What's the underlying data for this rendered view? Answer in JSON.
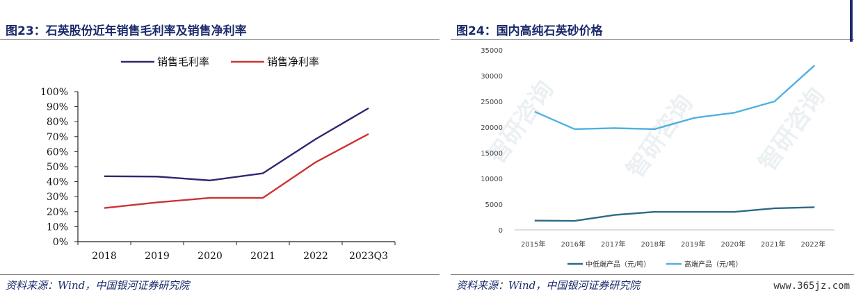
{
  "left": {
    "title": "图23：石英股份近年销售毛利率及销售净利率",
    "source": "资料来源：Wind，中国银河证券研究院"
  },
  "right": {
    "title": "图24：国内高纯石英砂价格",
    "source": "资料来源：Wind，中国银河证券研究院",
    "site": "www.365jz.com"
  },
  "chart_data": [
    {
      "type": "line",
      "title": "",
      "categories": [
        "2018",
        "2019",
        "2020",
        "2021",
        "2022",
        "2023Q3"
      ],
      "y_ticks": [
        "0%",
        "10%",
        "20%",
        "30%",
        "40%",
        "50%",
        "60%",
        "70%",
        "80%",
        "90%",
        "100%"
      ],
      "ylim": [
        0,
        100
      ],
      "legend_placement": "top",
      "grid": false,
      "series": [
        {
          "name": "销售毛利率",
          "color": "#2e2870",
          "values": [
            43.6,
            43.4,
            40.8,
            45.6,
            68.4,
            89.0
          ]
        },
        {
          "name": "销售净利率",
          "color": "#cc3333",
          "values": [
            22.4,
            26.2,
            29.2,
            29.2,
            53.0,
            71.8
          ]
        }
      ]
    },
    {
      "type": "line",
      "title": "",
      "categories": [
        "2015年",
        "2016年",
        "2017年",
        "2018年",
        "2019年",
        "2020年",
        "2021年",
        "2022年"
      ],
      "y_ticks": [
        "0",
        "5000",
        "10000",
        "15000",
        "20000",
        "25000",
        "30000",
        "35000"
      ],
      "ylim": [
        0,
        35000
      ],
      "legend_placement": "bottom",
      "grid": false,
      "series": [
        {
          "name": "中低端产品（元/吨）",
          "color": "#2b6a86",
          "values": [
            1800,
            1750,
            2900,
            3500,
            3500,
            3500,
            4200,
            4400
          ]
        },
        {
          "name": "高端产品（元/吨）",
          "color": "#4fb0e0",
          "values": [
            23000,
            19600,
            19800,
            19600,
            21800,
            22800,
            25000,
            32000
          ]
        }
      ]
    }
  ]
}
